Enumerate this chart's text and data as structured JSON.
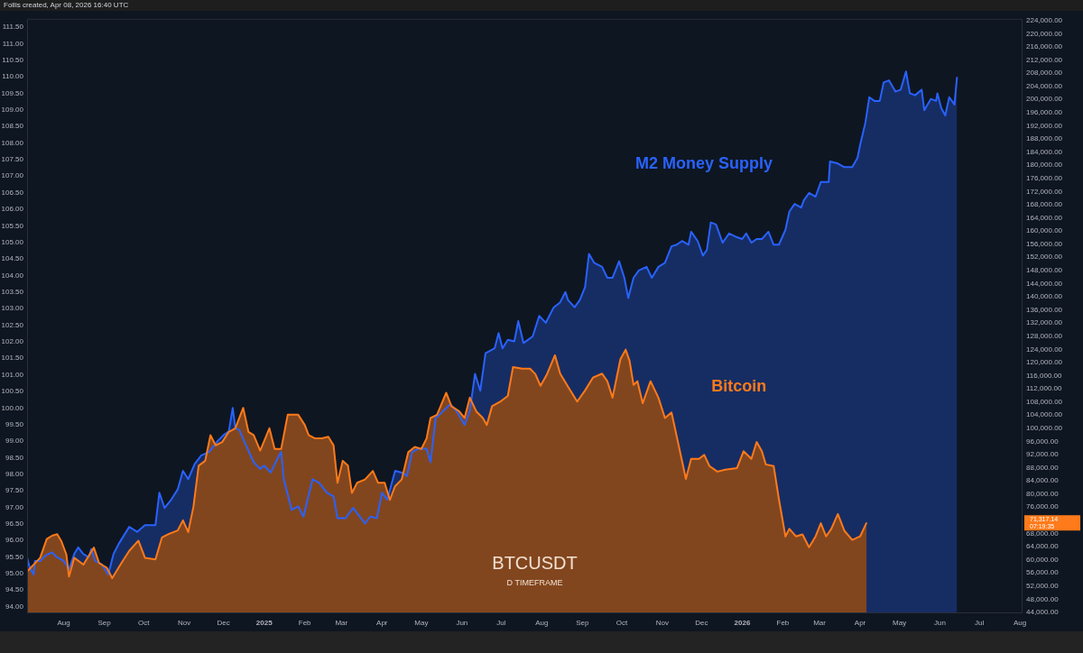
{
  "chart_data": {
    "type": "area",
    "legend": false,
    "grid": false,
    "xlim": [
      "2024-07-04",
      "2026-08-03"
    ],
    "xticks": [
      {
        "value": "2024-08",
        "label": "Aug"
      },
      {
        "value": "2024-09",
        "label": "Sep"
      },
      {
        "value": "2024-10",
        "label": "Oct"
      },
      {
        "value": "2024-11",
        "label": "Nov"
      },
      {
        "value": "2024-12",
        "label": "Dec"
      },
      {
        "value": "2025",
        "label": "2025"
      },
      {
        "value": "2025-02",
        "label": "Feb"
      },
      {
        "value": "2025-03",
        "label": "Mar"
      },
      {
        "value": "2025-04",
        "label": "Apr"
      },
      {
        "value": "2025-05",
        "label": "May"
      },
      {
        "value": "2025-06",
        "label": "Jun"
      },
      {
        "value": "2025-07",
        "label": "Jul"
      },
      {
        "value": "2025-08",
        "label": "Aug"
      },
      {
        "value": "2025-09",
        "label": "Sep"
      },
      {
        "value": "2025-10",
        "label": "Oct"
      },
      {
        "value": "2025-11",
        "label": "Nov"
      },
      {
        "value": "2025-12",
        "label": "Dec"
      },
      {
        "value": "2026",
        "label": "2026"
      },
      {
        "value": "2026-02",
        "label": "Feb"
      },
      {
        "value": "2026-03",
        "label": "Mar"
      },
      {
        "value": "2026-04",
        "label": "Apr"
      },
      {
        "value": "2026-05",
        "label": "May"
      },
      {
        "value": "2026-06",
        "label": "Jun"
      },
      {
        "value": "2026-07",
        "label": "Jul"
      },
      {
        "value": "2026-08",
        "label": "Aug"
      }
    ],
    "ylim": [
      93.8,
      111.75
    ],
    "yticks": [
      {
        "value": 94,
        "label": "94.00"
      },
      {
        "value": 94.5,
        "label": "94.50"
      },
      {
        "value": 95,
        "label": "95.00"
      },
      {
        "value": 95.5,
        "label": "95.50"
      },
      {
        "value": 96,
        "label": "96.00"
      },
      {
        "value": 96.5,
        "label": "96.50"
      },
      {
        "value": 97,
        "label": "97.00"
      },
      {
        "value": 97.5,
        "label": "97.50"
      },
      {
        "value": 98,
        "label": "98.00"
      },
      {
        "value": 98.5,
        "label": "98.50"
      },
      {
        "value": 99,
        "label": "99.00"
      },
      {
        "value": 99.5,
        "label": "99.50"
      },
      {
        "value": 100,
        "label": "100.00"
      },
      {
        "value": 100.5,
        "label": "100.50"
      },
      {
        "value": 101,
        "label": "101.00"
      },
      {
        "value": 101.5,
        "label": "101.50"
      },
      {
        "value": 102,
        "label": "102.00"
      },
      {
        "value": 102.5,
        "label": "102.50"
      },
      {
        "value": 103,
        "label": "103.00"
      },
      {
        "value": 103.5,
        "label": "103.50"
      },
      {
        "value": 104,
        "label": "104.00"
      },
      {
        "value": 104.5,
        "label": "104.50"
      },
      {
        "value": 105,
        "label": "105.00"
      },
      {
        "value": 105.5,
        "label": "105.50"
      },
      {
        "value": 106,
        "label": "106.00"
      },
      {
        "value": 106.5,
        "label": "106.50"
      },
      {
        "value": 107,
        "label": "107.00"
      },
      {
        "value": 107.5,
        "label": "107.50"
      },
      {
        "value": 108,
        "label": "108.00"
      },
      {
        "value": 108.5,
        "label": "108.50"
      },
      {
        "value": 109,
        "label": "109.00"
      },
      {
        "value": 109.5,
        "label": "109.50"
      },
      {
        "value": 110,
        "label": "110.00"
      },
      {
        "value": 110.5,
        "label": "110.50"
      },
      {
        "value": 111,
        "label": "111.00"
      },
      {
        "value": 111.5,
        "label": "111.50"
      }
    ],
    "y2lim": [
      43700,
      224550
    ],
    "y2ticks": [
      {
        "value": 44000,
        "label": "44,000.00"
      },
      {
        "value": 48000,
        "label": "48,000.00"
      },
      {
        "value": 52000,
        "label": "52,000.00"
      },
      {
        "value": 56000,
        "label": "56,000.00"
      },
      {
        "value": 60000,
        "label": "60,000.00"
      },
      {
        "value": 64000,
        "label": "64,000.00"
      },
      {
        "value": 68000,
        "label": "68,000.00"
      },
      {
        "value": 76000,
        "label": "76,000.00"
      },
      {
        "value": 80000,
        "label": "80,000.00"
      },
      {
        "value": 84000,
        "label": "84,000.00"
      },
      {
        "value": 88000,
        "label": "88,000.00"
      },
      {
        "value": 92000,
        "label": "92,000.00"
      },
      {
        "value": 96000,
        "label": "96,000.00"
      },
      {
        "value": 100000,
        "label": "100,000.00"
      },
      {
        "value": 104000,
        "label": "104,000.00"
      },
      {
        "value": 108000,
        "label": "108,000.00"
      },
      {
        "value": 112000,
        "label": "112,000.00"
      },
      {
        "value": 116000,
        "label": "116,000.00"
      },
      {
        "value": 120000,
        "label": "120,000.00"
      },
      {
        "value": 124000,
        "label": "124,000.00"
      },
      {
        "value": 128000,
        "label": "128,000.00"
      },
      {
        "value": 132000,
        "label": "132,000.00"
      },
      {
        "value": 136000,
        "label": "136,000.00"
      },
      {
        "value": 140000,
        "label": "140,000.00"
      },
      {
        "value": 144000,
        "label": "144,000.00"
      },
      {
        "value": 148000,
        "label": "148,000.00"
      },
      {
        "value": 152000,
        "label": "152,000.00"
      },
      {
        "value": 156000,
        "label": "156,000.00"
      },
      {
        "value": 160000,
        "label": "160,000.00"
      },
      {
        "value": 164000,
        "label": "164,000.00"
      },
      {
        "value": 168000,
        "label": "168,000.00"
      },
      {
        "value": 172000,
        "label": "172,000.00"
      },
      {
        "value": 176000,
        "label": "176,000.00"
      },
      {
        "value": 180000,
        "label": "180,000.00"
      },
      {
        "value": 184000,
        "label": "184,000.00"
      },
      {
        "value": 188000,
        "label": "188,000.00"
      },
      {
        "value": 192000,
        "label": "192,000.00"
      },
      {
        "value": 196000,
        "label": "196,000.00"
      },
      {
        "value": 200000,
        "label": "200,000.00"
      },
      {
        "value": 204000,
        "label": "204,000.00"
      },
      {
        "value": 208000,
        "label": "208,000.00"
      },
      {
        "value": 212000,
        "label": "212,000.00"
      },
      {
        "value": 216000,
        "label": "216,000.00"
      },
      {
        "value": 220000,
        "label": "220,000.00"
      },
      {
        "value": 224000,
        "label": "224,000.00"
      }
    ],
    "annotations": [
      "Follis created, Apr 08, 2026 16:40 UTC",
      "BTCUSDT",
      "D TIMEFRAME",
      "71,317.14",
      "07:19:35"
    ],
    "series": [
      {
        "name": "Bitcoin",
        "color": "#ff7a1a",
        "axis": "y2",
        "x": [
          "2024-07-04",
          "2024-07-14",
          "2024-07-19",
          "2024-07-23",
          "2024-07-27",
          "2024-07-30",
          "2024-08-03",
          "2024-08-05",
          "2024-08-09",
          "2024-08-16",
          "2024-08-24",
          "2024-08-28",
          "2024-09-03",
          "2024-09-07",
          "2024-09-14",
          "2024-09-20",
          "2024-09-27",
          "2024-10-02",
          "2024-10-10",
          "2024-10-15",
          "2024-10-20",
          "2024-10-27",
          "2024-10-31",
          "2024-11-04",
          "2024-11-08",
          "2024-11-12",
          "2024-11-17",
          "2024-11-21",
          "2024-11-25",
          "2024-11-30",
          "2024-12-05",
          "2024-12-10",
          "2024-12-16",
          "2024-12-20",
          "2024-12-24",
          "2024-12-29",
          "2025-01-05",
          "2025-01-09",
          "2025-01-14",
          "2025-01-19",
          "2025-01-27",
          "2025-02-01",
          "2025-02-04",
          "2025-02-09",
          "2025-02-14",
          "2025-02-19",
          "2025-02-23",
          "2025-02-26",
          "2025-03-02",
          "2025-03-06",
          "2025-03-09",
          "2025-03-13",
          "2025-03-19",
          "2025-03-25",
          "2025-03-29",
          "2025-04-03",
          "2025-04-07",
          "2025-04-11",
          "2025-04-16",
          "2025-04-21",
          "2025-04-26",
          "2025-05-01",
          "2025-05-05",
          "2025-05-08",
          "2025-05-13",
          "2025-05-20",
          "2025-05-24",
          "2025-05-30",
          "2025-06-03",
          "2025-06-07",
          "2025-06-12",
          "2025-06-17",
          "2025-06-20",
          "2025-06-24",
          "2025-07-01",
          "2025-07-06",
          "2025-07-10",
          "2025-07-17",
          "2025-07-23",
          "2025-07-27",
          "2025-07-31",
          "2025-08-05",
          "2025-08-11",
          "2025-08-15",
          "2025-08-21",
          "2025-08-28",
          "2025-09-03",
          "2025-09-09",
          "2025-09-16",
          "2025-09-20",
          "2025-09-24",
          "2025-09-30",
          "2025-10-04",
          "2025-10-07",
          "2025-10-10",
          "2025-10-13",
          "2025-10-17",
          "2025-10-23",
          "2025-10-29",
          "2025-11-03",
          "2025-11-08",
          "2025-11-12",
          "2025-11-19",
          "2025-11-23",
          "2025-11-29",
          "2025-12-03",
          "2025-12-07",
          "2025-12-13",
          "2025-12-19",
          "2025-12-28",
          "2026-01-02",
          "2026-01-08",
          "2026-01-12",
          "2026-01-16",
          "2026-01-19",
          "2026-01-25",
          "2026-01-29",
          "2026-02-03",
          "2026-02-06",
          "2026-02-11",
          "2026-02-16",
          "2026-02-21",
          "2026-02-26",
          "2026-03-02",
          "2026-03-06",
          "2026-03-10",
          "2026-03-15",
          "2026-03-20",
          "2026-03-26",
          "2026-04-01",
          "2026-04-06"
        ],
        "values": [
          56400,
          60600,
          66300,
          67300,
          67800,
          65800,
          61600,
          54900,
          60600,
          58500,
          63700,
          59000,
          57500,
          54400,
          59000,
          62700,
          65800,
          60600,
          60100,
          66800,
          67800,
          68900,
          72000,
          68400,
          76100,
          88600,
          90100,
          97900,
          94800,
          95800,
          98900,
          100000,
          106200,
          98900,
          97900,
          93200,
          100000,
          93700,
          93700,
          104100,
          104100,
          101000,
          97900,
          96900,
          96900,
          97400,
          94800,
          83400,
          90100,
          88600,
          80300,
          83400,
          84400,
          87000,
          83400,
          83400,
          78200,
          82400,
          84400,
          92700,
          94300,
          93700,
          96900,
          103100,
          104100,
          110800,
          106700,
          105100,
          103100,
          109300,
          105100,
          103100,
          101000,
          106700,
          108300,
          109800,
          118600,
          118100,
          118100,
          116500,
          112900,
          116500,
          122200,
          116600,
          112600,
          108100,
          111500,
          115400,
          116600,
          114300,
          109300,
          121000,
          123900,
          120500,
          113200,
          114300,
          107600,
          114300,
          109300,
          103100,
          104800,
          97500,
          84600,
          90700,
          90700,
          91900,
          88500,
          86800,
          87400,
          87900,
          93000,
          90700,
          95800,
          93000,
          89000,
          88500,
          78400,
          67100,
          69400,
          67100,
          67700,
          63800,
          67100,
          71100,
          67100,
          69400,
          73900,
          68800,
          66000,
          67100,
          71317.14
        ]
      },
      {
        "name": "M2 Money Supply",
        "color": "#2962ff",
        "axis": "y",
        "x": [
          "2024-07-04",
          "2024-07-06",
          "2024-07-09",
          "2024-07-10",
          "2024-07-14",
          "2024-07-18",
          "2024-07-23",
          "2024-07-27",
          "2024-08-01",
          "2024-08-05",
          "2024-08-09",
          "2024-08-12",
          "2024-08-16",
          "2024-08-20",
          "2024-08-22",
          "2024-08-25",
          "2024-08-30",
          "2024-09-04",
          "2024-09-08",
          "2024-09-12",
          "2024-09-20",
          "2024-09-26",
          "2024-10-02",
          "2024-10-10",
          "2024-10-13",
          "2024-10-17",
          "2024-10-22",
          "2024-10-27",
          "2024-10-31",
          "2024-11-04",
          "2024-11-09",
          "2024-11-14",
          "2024-11-20",
          "2024-11-26",
          "2024-12-01",
          "2024-12-05",
          "2024-12-08",
          "2024-12-10",
          "2024-12-13",
          "2024-12-18",
          "2024-12-24",
          "2024-12-29",
          "2025-01-01",
          "2025-01-06",
          "2025-01-11",
          "2025-01-14",
          "2025-01-16",
          "2025-01-22",
          "2025-01-27",
          "2025-01-31",
          "2025-02-07",
          "2025-02-12",
          "2025-02-18",
          "2025-02-23",
          "2025-02-26",
          "2025-03-04",
          "2025-03-10",
          "2025-03-13",
          "2025-03-19",
          "2025-03-23",
          "2025-03-28",
          "2025-04-01",
          "2025-04-05",
          "2025-04-11",
          "2025-04-16",
          "2025-04-20",
          "2025-04-24",
          "2025-04-29",
          "2025-05-05",
          "2025-05-08",
          "2025-05-12",
          "2025-05-15",
          "2025-05-23",
          "2025-05-28",
          "2025-06-03",
          "2025-06-07",
          "2025-06-11",
          "2025-06-15",
          "2025-06-19",
          "2025-06-26",
          "2025-06-29",
          "2025-07-02",
          "2025-07-06",
          "2025-07-11",
          "2025-07-14",
          "2025-07-18",
          "2025-07-25",
          "2025-07-30",
          "2025-08-04",
          "2025-08-10",
          "2025-08-15",
          "2025-08-19",
          "2025-08-21",
          "2025-08-26",
          "2025-08-30",
          "2025-09-03",
          "2025-09-06",
          "2025-09-10",
          "2025-09-16",
          "2025-09-20",
          "2025-09-24",
          "2025-09-29",
          "2025-10-03",
          "2025-10-06",
          "2025-10-10",
          "2025-10-14",
          "2025-10-20",
          "2025-10-24",
          "2025-10-29",
          "2025-11-03",
          "2025-11-08",
          "2025-11-12",
          "2025-11-16",
          "2025-11-21",
          "2025-11-23",
          "2025-11-28",
          "2025-12-02",
          "2025-12-05",
          "2025-12-08",
          "2025-12-12",
          "2025-12-17",
          "2025-12-22",
          "2025-12-27",
          "2026-01-01",
          "2026-01-04",
          "2026-01-08",
          "2026-01-12",
          "2026-01-16",
          "2026-01-21",
          "2026-01-25",
          "2026-01-29",
          "2026-02-03",
          "2026-02-06",
          "2026-02-10",
          "2026-02-15",
          "2026-02-17",
          "2026-02-21",
          "2026-02-26",
          "2026-03-02",
          "2026-03-08",
          "2026-03-09",
          "2026-03-15",
          "2026-03-20",
          "2026-03-26",
          "2026-03-30",
          "2026-04-01",
          "2026-04-05",
          "2026-04-08",
          "2026-04-12",
          "2026-04-16",
          "2026-04-19",
          "2026-04-23",
          "2026-04-28",
          "2026-05-02",
          "2026-05-06",
          "2026-05-09",
          "2026-05-13",
          "2026-05-18",
          "2026-05-20",
          "2026-05-25",
          "2026-05-29",
          "2026-05-30",
          "2026-06-02",
          "2026-06-05",
          "2026-06-08",
          "2026-06-11",
          "2026-06-12",
          "2026-06-14"
        ],
        "values": [
          95.49,
          95.18,
          94.97,
          95.38,
          95.38,
          95.54,
          95.64,
          95.49,
          95.38,
          95.13,
          95.59,
          95.79,
          95.59,
          95.49,
          95.74,
          95.38,
          95.28,
          94.97,
          95.59,
          95.9,
          96.41,
          96.26,
          96.46,
          96.46,
          97.44,
          96.98,
          97.23,
          97.54,
          98.1,
          97.85,
          98.31,
          98.57,
          98.67,
          98.98,
          99.18,
          99.29,
          100.0,
          99.39,
          99.34,
          98.88,
          98.36,
          98.16,
          98.26,
          98.05,
          98.46,
          98.67,
          97.85,
          96.92,
          97.03,
          96.72,
          97.85,
          97.74,
          97.44,
          97.33,
          96.67,
          96.67,
          96.98,
          96.82,
          96.51,
          96.72,
          96.67,
          97.44,
          97.23,
          98.1,
          98.05,
          97.95,
          98.67,
          98.77,
          98.77,
          98.36,
          99.7,
          99.8,
          100.11,
          99.9,
          99.49,
          99.9,
          101.03,
          100.52,
          101.65,
          101.8,
          102.26,
          101.8,
          102.06,
          102.01,
          102.62,
          101.96,
          102.16,
          102.78,
          102.57,
          103.03,
          103.19,
          103.5,
          103.26,
          103.04,
          103.26,
          103.65,
          104.65,
          104.38,
          104.26,
          103.93,
          103.93,
          104.43,
          103.93,
          103.32,
          103.93,
          104.15,
          104.26,
          103.93,
          104.26,
          104.38,
          104.88,
          104.93,
          105.04,
          104.93,
          105.32,
          105.04,
          104.6,
          104.77,
          105.6,
          105.54,
          104.99,
          105.27,
          105.17,
          105.1,
          105.27,
          104.99,
          105.1,
          105.1,
          105.32,
          104.93,
          104.93,
          105.38,
          105.93,
          106.16,
          106.05,
          106.27,
          106.49,
          106.38,
          106.82,
          106.82,
          107.44,
          107.38,
          107.27,
          107.27,
          107.55,
          107.94,
          108.61,
          109.38,
          109.27,
          109.27,
          109.83,
          109.89,
          109.55,
          109.61,
          110.16,
          109.5,
          109.44,
          109.61,
          108.99,
          109.33,
          109.27,
          109.5,
          109.05,
          108.83,
          109.38,
          109.22,
          109.16,
          109.99
        ]
      }
    ]
  }
}
